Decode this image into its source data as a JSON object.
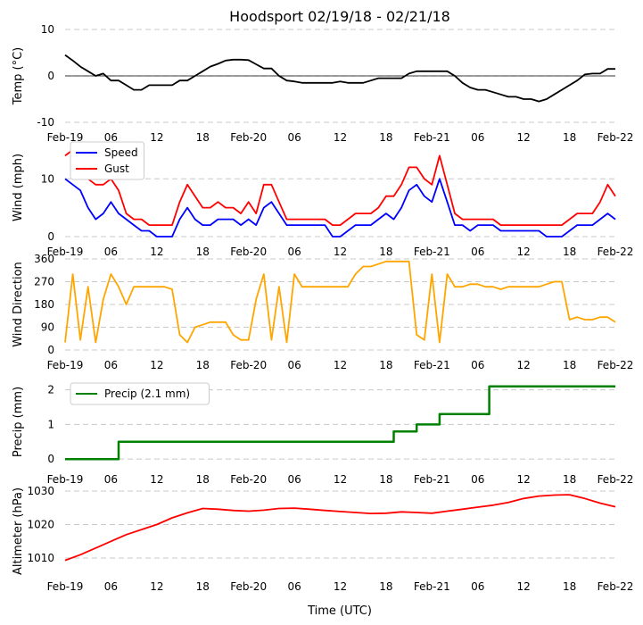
{
  "chart_data": {
    "title": "Hoodsport 02/19/18 - 02/21/18",
    "xlabel": "Time (UTC)",
    "x_range_hours": [
      0,
      72
    ],
    "x_ticks": [
      {
        "h": 0,
        "label": "Feb-19"
      },
      {
        "h": 6,
        "label": "06"
      },
      {
        "h": 12,
        "label": "12"
      },
      {
        "h": 18,
        "label": "18"
      },
      {
        "h": 24,
        "label": "Feb-20"
      },
      {
        "h": 30,
        "label": "06"
      },
      {
        "h": 36,
        "label": "12"
      },
      {
        "h": 42,
        "label": "18"
      },
      {
        "h": 48,
        "label": "Feb-21"
      },
      {
        "h": 54,
        "label": "06"
      },
      {
        "h": 60,
        "label": "12"
      },
      {
        "h": 66,
        "label": "18"
      },
      {
        "h": 72,
        "label": "Feb-22"
      }
    ],
    "panels": [
      {
        "id": "temp",
        "type": "line",
        "ylabel": "Temp (°C)",
        "ylim": [
          -10,
          10
        ],
        "yticks": [
          -10,
          0,
          10
        ],
        "zero_line": true,
        "series": [
          {
            "name": "Temp",
            "color": "#000000",
            "x_hours": [
              0,
              1,
              2,
              3,
              4,
              5,
              6,
              7,
              8,
              9,
              10,
              11,
              12,
              13,
              14,
              15,
              16,
              17,
              18,
              19,
              20,
              21,
              22,
              23,
              24,
              25,
              26,
              27,
              28,
              29,
              30,
              31,
              32,
              33,
              34,
              35,
              36,
              37,
              38,
              39,
              40,
              41,
              42,
              43,
              44,
              45,
              46,
              47,
              48,
              49,
              50,
              51,
              52,
              53,
              54,
              55,
              56,
              57,
              58,
              59,
              60,
              61,
              62,
              63,
              64,
              65,
              66,
              67,
              68,
              69,
              70,
              71,
              72
            ],
            "values": [
              4.5,
              3.3,
              2,
              1,
              0,
              0.5,
              -1,
              -1,
              -2,
              -3,
              -3,
              -2,
              -2,
              -2,
              -2,
              -1,
              -1,
              0,
              1,
              2,
              2.6,
              3.3,
              3.5,
              3.5,
              3.4,
              2.5,
              1.6,
              1.6,
              0,
              -1,
              -1.2,
              -1.5,
              -1.5,
              -1.5,
              -1.5,
              -1.5,
              -1.2,
              -1.5,
              -1.5,
              -1.5,
              -1.0,
              -0.5,
              -0.5,
              -0.5,
              -0.5,
              0.5,
              1.0,
              1.0,
              1.0,
              1.0,
              1.0,
              0,
              -1.5,
              -2.5,
              -3,
              -3,
              -3.5,
              -4,
              -4.5,
              -4.5,
              -5,
              -5,
              -5.5,
              -5,
              -4,
              -3,
              -2,
              -1,
              0.3,
              0.5,
              0.5,
              1.5,
              1.5
            ]
          }
        ]
      },
      {
        "id": "wind",
        "type": "line",
        "ylabel": "Wind (mph)",
        "ylim": [
          0,
          17
        ],
        "yticks": [
          0,
          10
        ],
        "legend": "top-left",
        "series": [
          {
            "name": "Speed",
            "color": "#0000ff",
            "x_hours": [
              0,
              1,
              2,
              3,
              4,
              5,
              6,
              7,
              8,
              9,
              10,
              11,
              12,
              13,
              14,
              15,
              16,
              17,
              18,
              19,
              20,
              21,
              22,
              23,
              24,
              25,
              26,
              27,
              28,
              29,
              30,
              31,
              32,
              33,
              34,
              35,
              36,
              37,
              38,
              39,
              40,
              41,
              42,
              43,
              44,
              45,
              46,
              47,
              48,
              49,
              50,
              51,
              52,
              53,
              54,
              55,
              56,
              57,
              58,
              59,
              60,
              61,
              62,
              63,
              64,
              65,
              66,
              67,
              68,
              69,
              70,
              71,
              72
            ],
            "values": [
              10,
              9,
              8,
              5,
              3,
              4,
              6,
              4,
              3,
              2,
              1,
              1,
              0,
              0,
              0,
              3,
              5,
              3,
              2,
              2,
              3,
              3,
              3,
              2,
              3,
              2,
              5,
              6,
              4,
              2,
              2,
              2,
              2,
              2,
              2,
              0,
              0,
              1,
              2,
              2,
              2,
              3,
              4,
              3,
              5,
              8,
              9,
              7,
              6,
              10,
              6,
              2,
              2,
              1,
              2,
              2,
              2,
              1,
              1,
              1,
              1,
              1,
              1,
              0,
              0,
              0,
              1,
              2,
              2,
              2,
              3,
              4,
              3
            ]
          },
          {
            "name": "Gust",
            "color": "#ff0000",
            "x_hours": [
              0,
              1,
              2,
              3,
              4,
              5,
              6,
              7,
              8,
              9,
              10,
              11,
              12,
              13,
              14,
              15,
              16,
              17,
              18,
              19,
              20,
              21,
              22,
              23,
              24,
              25,
              26,
              27,
              28,
              29,
              30,
              31,
              32,
              33,
              34,
              35,
              36,
              37,
              38,
              39,
              40,
              41,
              42,
              43,
              44,
              45,
              46,
              47,
              48,
              49,
              50,
              51,
              52,
              53,
              54,
              55,
              56,
              57,
              58,
              59,
              60,
              61,
              62,
              63,
              64,
              65,
              66,
              67,
              68,
              69,
              70,
              71,
              72
            ],
            "values": [
              14,
              15,
              12,
              10,
              9,
              9,
              10,
              8,
              4,
              3,
              3,
              2,
              2,
              2,
              2,
              6,
              9,
              7,
              5,
              5,
              6,
              5,
              5,
              4,
              6,
              4,
              9,
              9,
              6,
              3,
              3,
              3,
              3,
              3,
              3,
              2,
              2,
              3,
              4,
              4,
              4,
              5,
              7,
              7,
              9,
              12,
              12,
              10,
              9,
              14,
              9,
              4,
              3,
              3,
              3,
              3,
              3,
              2,
              2,
              2,
              2,
              2,
              2,
              2,
              2,
              2,
              3,
              4,
              4,
              4,
              6,
              9,
              7
            ]
          }
        ]
      },
      {
        "id": "dir",
        "type": "line",
        "ylabel": "Wind Direction",
        "ylim": [
          0,
          360
        ],
        "yticks": [
          0,
          90,
          180,
          270,
          360
        ],
        "series": [
          {
            "name": "Direction",
            "color": "#ffa500",
            "x_hours": [
              0,
              1,
              2,
              3,
              4,
              5,
              6,
              7,
              8,
              9,
              10,
              11,
              12,
              13,
              14,
              15,
              16,
              17,
              18,
              19,
              20,
              21,
              22,
              23,
              24,
              25,
              26,
              27,
              28,
              29,
              30,
              31,
              32,
              33,
              34,
              35,
              36,
              37,
              38,
              39,
              40,
              41,
              42,
              43,
              44,
              45,
              46,
              47,
              48,
              49,
              50,
              51,
              52,
              53,
              54,
              55,
              56,
              57,
              58,
              59,
              60,
              61,
              62,
              63,
              64,
              65,
              66,
              67,
              68,
              69,
              70,
              71,
              72
            ],
            "values": [
              30,
              300,
              40,
              250,
              30,
              200,
              300,
              250,
              180,
              250,
              250,
              250,
              250,
              250,
              240,
              60,
              30,
              90,
              100,
              110,
              110,
              110,
              60,
              40,
              40,
              200,
              300,
              40,
              250,
              30,
              300,
              250,
              250,
              250,
              250,
              250,
              250,
              250,
              300,
              330,
              330,
              340,
              350,
              350,
              350,
              350,
              60,
              40,
              300,
              30,
              300,
              250,
              250,
              260,
              260,
              250,
              250,
              240,
              250,
              250,
              250,
              250,
              250,
              260,
              270,
              270,
              120,
              130,
              120,
              120,
              130,
              130,
              110
            ]
          }
        ]
      },
      {
        "id": "precip",
        "type": "step",
        "ylabel": "Precip (mm)",
        "ylim": [
          -0.15,
          2.3
        ],
        "yticks": [
          0,
          1,
          2
        ],
        "legend": "top-left",
        "series": [
          {
            "name": "Precip (2.1 mm)",
            "color": "#008000",
            "x_hours": [
              0,
              7,
              43,
              46,
              49,
              55.5,
              72
            ],
            "values": [
              0,
              0.5,
              0.8,
              1.0,
              1.3,
              2.1,
              2.1
            ]
          }
        ]
      },
      {
        "id": "alt",
        "type": "line",
        "ylabel": "Altimeter (hPa)",
        "ylim": [
          1006,
          1030
        ],
        "yticks": [
          1010,
          1020,
          1030
        ],
        "series": [
          {
            "name": "Altimeter",
            "color": "#ff0000",
            "x_hours": [
              0,
              2,
              4,
              6,
              8,
              10,
              12,
              14,
              16,
              18,
              20,
              22,
              24,
              26,
              28,
              30,
              32,
              34,
              36,
              38,
              40,
              42,
              44,
              46,
              48,
              50,
              52,
              54,
              56,
              58,
              60,
              62,
              64,
              66,
              68,
              70,
              72
            ],
            "values": [
              1009.3,
              1011,
              1013,
              1015,
              1017,
              1018.5,
              1020,
              1022,
              1023.5,
              1024.8,
              1024.6,
              1024.2,
              1024.0,
              1024.3,
              1024.8,
              1024.9,
              1024.6,
              1024.2,
              1023.9,
              1023.6,
              1023.3,
              1023.4,
              1023.8,
              1023.6,
              1023.4,
              1024.0,
              1024.6,
              1025.2,
              1025.8,
              1026.6,
              1027.8,
              1028.5,
              1028.8,
              1028.9,
              1027.8,
              1026.4,
              1025.3
            ]
          }
        ]
      }
    ]
  }
}
